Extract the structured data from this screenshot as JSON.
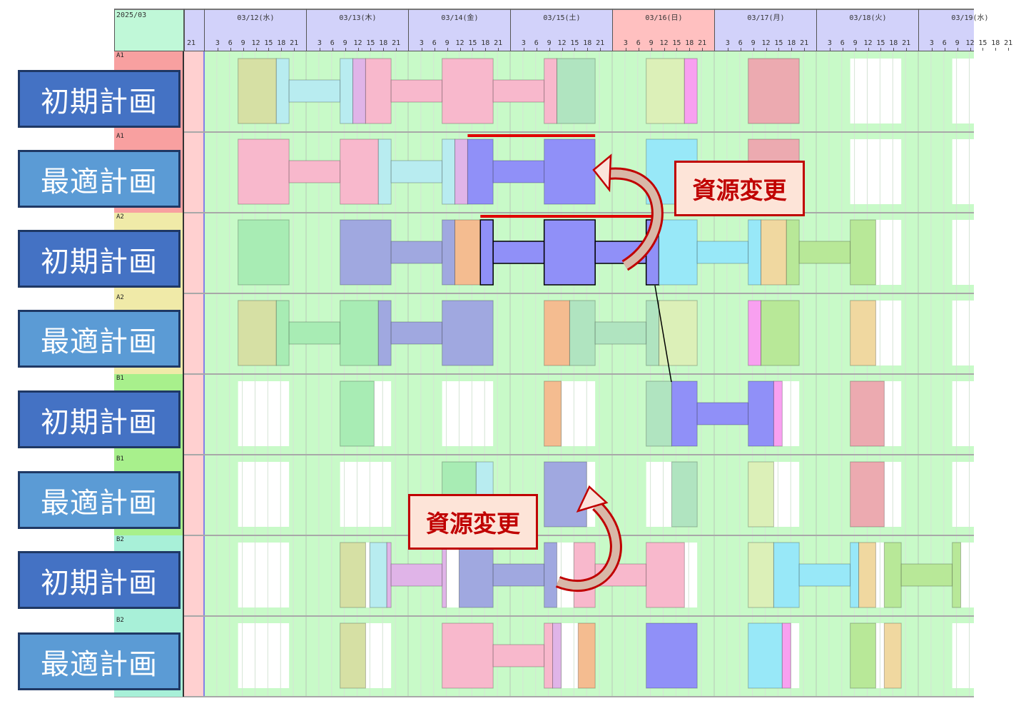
{
  "header": {
    "month": "2025/03",
    "prev_day_tick": "21",
    "days": [
      {
        "label": "03/12(水)",
        "sunday": false
      },
      {
        "label": "03/13(木)",
        "sunday": false
      },
      {
        "label": "03/14(金)",
        "sunday": false
      },
      {
        "label": "03/15(土)",
        "sunday": false
      },
      {
        "label": "03/16(日)",
        "sunday": true
      },
      {
        "label": "03/17(月)",
        "sunday": false
      },
      {
        "label": "03/18(火)",
        "sunday": false
      },
      {
        "label": "03/19(水)",
        "sunday": false
      }
    ],
    "hour_ticks": [
      "3",
      "6",
      "9",
      "12",
      "15",
      "18",
      "21"
    ]
  },
  "colors": {
    "olive": "#d6e0a4",
    "cyan": "#b8ecf0",
    "violet": "#e0b4e8",
    "pink": "#f8b8cc",
    "green2": "#b0e4c0",
    "light": "#dcf0b8",
    "magenta": "#f8a0f0",
    "rose": "#ecaab0",
    "blue": "#9090f8",
    "sky": "#98e8f8",
    "mint": "#a8ecb4",
    "bluegray": "#a0a8e0",
    "orange": "#f4bc90",
    "tan": "#f0d8a0",
    "lime": "#b8e898",
    "grid_bg": "#c8fac8",
    "free_window": "#ffffff",
    "past": "#ffd0d0",
    "res_A1": "#f8a0a0",
    "res_A2": "#f0eaa8",
    "res_B1": "#a8f08c",
    "res_B2": "#a8f0d8",
    "highlight": "#e00000",
    "callout": "#c00000"
  },
  "free_window_hours": [
    8,
    20
  ],
  "rows": [
    {
      "resource": "A1",
      "plan": "初期計画",
      "plan_type": "initial",
      "tasks": [
        [
          "03/12 08:00",
          "03/12 17:00",
          "olive",
          "block"
        ],
        [
          "03/12 17:00",
          "03/12 20:00",
          "cyan",
          "block"
        ],
        [
          "03/12 20:00",
          "03/13 08:00",
          "cyan",
          "link"
        ],
        [
          "03/13 08:00",
          "03/13 11:00",
          "cyan",
          "block"
        ],
        [
          "03/13 11:00",
          "03/13 14:00",
          "violet",
          "block"
        ],
        [
          "03/13 14:00",
          "03/13 20:00",
          "pink",
          "block"
        ],
        [
          "03/13 20:00",
          "03/14 08:00",
          "pink",
          "link"
        ],
        [
          "03/14 08:00",
          "03/14 20:00",
          "pink",
          "block"
        ],
        [
          "03/14 20:00",
          "03/15 08:00",
          "pink",
          "link"
        ],
        [
          "03/15 08:00",
          "03/15 11:00",
          "pink",
          "block"
        ],
        [
          "03/15 11:00",
          "03/15 20:00",
          "green2",
          "block"
        ],
        [
          "03/16 08:00",
          "03/16 17:00",
          "light",
          "block"
        ],
        [
          "03/16 17:00",
          "03/16 20:00",
          "magenta",
          "block"
        ],
        [
          "03/17 08:00",
          "03/17 20:00",
          "rose",
          "block"
        ]
      ]
    },
    {
      "resource": "A1",
      "plan": "最適計画",
      "plan_type": "optimal",
      "tasks": [
        [
          "03/12 08:00",
          "03/12 20:00",
          "pink",
          "block"
        ],
        [
          "03/12 20:00",
          "03/13 08:00",
          "pink",
          "link"
        ],
        [
          "03/13 08:00",
          "03/13 17:00",
          "pink",
          "block"
        ],
        [
          "03/13 17:00",
          "03/13 20:00",
          "cyan",
          "block"
        ],
        [
          "03/13 20:00",
          "03/14 08:00",
          "cyan",
          "link"
        ],
        [
          "03/14 08:00",
          "03/14 11:00",
          "cyan",
          "block"
        ],
        [
          "03/14 11:00",
          "03/14 14:00",
          "violet",
          "block"
        ],
        [
          "03/14 14:00",
          "03/14 20:00",
          "blue",
          "block"
        ],
        [
          "03/14 20:00",
          "03/15 08:00",
          "blue",
          "link"
        ],
        [
          "03/15 08:00",
          "03/15 20:00",
          "blue",
          "block"
        ],
        [
          "03/16 08:00",
          "03/16 20:00",
          "sky",
          "block"
        ],
        [
          "03/17 08:00",
          "03/17 20:00",
          "rose",
          "block"
        ]
      ]
    },
    {
      "resource": "A2",
      "plan": "初期計画",
      "plan_type": "initial",
      "tasks": [
        [
          "03/12 08:00",
          "03/12 20:00",
          "mint",
          "block"
        ],
        [
          "03/13 08:00",
          "03/13 20:00",
          "bluegray",
          "block"
        ],
        [
          "03/13 20:00",
          "03/14 08:00",
          "bluegray",
          "link"
        ],
        [
          "03/14 08:00",
          "03/14 11:00",
          "bluegray",
          "block"
        ],
        [
          "03/14 11:00",
          "03/14 17:00",
          "orange",
          "block"
        ],
        [
          "03/14 17:00",
          "03/14 20:00",
          "blue",
          "block",
          "outlined"
        ],
        [
          "03/14 20:00",
          "03/15 08:00",
          "blue",
          "link",
          "outlined"
        ],
        [
          "03/15 08:00",
          "03/15 20:00",
          "blue",
          "block",
          "outlined"
        ],
        [
          "03/15 20:00",
          "03/16 08:00",
          "blue",
          "link",
          "outlined"
        ],
        [
          "03/16 08:00",
          "03/16 11:00",
          "blue",
          "block",
          "outlined"
        ],
        [
          "03/16 11:00",
          "03/16 20:00",
          "sky",
          "block"
        ],
        [
          "03/16 20:00",
          "03/17 08:00",
          "sky",
          "link"
        ],
        [
          "03/17 08:00",
          "03/17 11:00",
          "sky",
          "block"
        ],
        [
          "03/17 11:00",
          "03/17 17:00",
          "tan",
          "block"
        ],
        [
          "03/17 17:00",
          "03/17 20:00",
          "lime",
          "block"
        ],
        [
          "03/17 20:00",
          "03/18 08:00",
          "lime",
          "link"
        ],
        [
          "03/18 08:00",
          "03/18 14:00",
          "lime",
          "block"
        ]
      ]
    },
    {
      "resource": "A2",
      "plan": "最適計画",
      "plan_type": "optimal",
      "tasks": [
        [
          "03/12 08:00",
          "03/12 17:00",
          "olive",
          "block"
        ],
        [
          "03/12 17:00",
          "03/12 20:00",
          "mint",
          "block"
        ],
        [
          "03/12 20:00",
          "03/13 08:00",
          "mint",
          "link"
        ],
        [
          "03/13 08:00",
          "03/13 17:00",
          "mint",
          "block"
        ],
        [
          "03/13 17:00",
          "03/13 20:00",
          "bluegray",
          "block"
        ],
        [
          "03/13 20:00",
          "03/14 08:00",
          "bluegray",
          "link"
        ],
        [
          "03/14 08:00",
          "03/14 20:00",
          "bluegray",
          "block"
        ],
        [
          "03/15 08:00",
          "03/15 14:00",
          "orange",
          "block"
        ],
        [
          "03/15 14:00",
          "03/15 20:00",
          "green2",
          "block"
        ],
        [
          "03/15 20:00",
          "03/16 08:00",
          "green2",
          "link"
        ],
        [
          "03/16 08:00",
          "03/16 11:00",
          "green2",
          "block"
        ],
        [
          "03/16 11:00",
          "03/16 20:00",
          "light",
          "block"
        ],
        [
          "03/17 08:00",
          "03/17 11:00",
          "magenta",
          "block"
        ],
        [
          "03/17 11:00",
          "03/17 20:00",
          "lime",
          "block"
        ],
        [
          "03/18 08:00",
          "03/18 14:00",
          "tan",
          "block"
        ]
      ]
    },
    {
      "resource": "B1",
      "plan": "初期計画",
      "plan_type": "initial",
      "tasks": [
        [
          "03/13 08:00",
          "03/13 16:00",
          "mint",
          "block"
        ],
        [
          "03/15 08:00",
          "03/15 12:00",
          "orange",
          "block"
        ],
        [
          "03/16 08:00",
          "03/16 14:00",
          "green2",
          "block"
        ],
        [
          "03/16 14:00",
          "03/16 20:00",
          "blue",
          "block"
        ],
        [
          "03/16 20:00",
          "03/17 08:00",
          "blue",
          "link"
        ],
        [
          "03/17 08:00",
          "03/17 14:00",
          "blue",
          "block"
        ],
        [
          "03/17 14:00",
          "03/17 16:00",
          "magenta",
          "block"
        ],
        [
          "03/18 08:00",
          "03/18 16:00",
          "rose",
          "block"
        ]
      ]
    },
    {
      "resource": "B1",
      "plan": "最適計画",
      "plan_type": "optimal",
      "tasks": [
        [
          "03/14 08:00",
          "03/14 16:00",
          "mint",
          "block"
        ],
        [
          "03/14 16:00",
          "03/14 20:00",
          "cyan",
          "block"
        ],
        [
          "03/15 08:00",
          "03/15 18:00",
          "bluegray",
          "block"
        ],
        [
          "03/16 14:00",
          "03/16 20:00",
          "green2",
          "block"
        ],
        [
          "03/17 08:00",
          "03/17 14:00",
          "light",
          "block"
        ],
        [
          "03/18 08:00",
          "03/18 16:00",
          "rose",
          "block"
        ]
      ]
    },
    {
      "resource": "B2",
      "plan": "初期計画",
      "plan_type": "initial",
      "tasks": [
        [
          "03/13 08:00",
          "03/13 14:00",
          "olive",
          "block"
        ],
        [
          "03/13 15:00",
          "03/13 19:00",
          "cyan",
          "block"
        ],
        [
          "03/13 19:00",
          "03/13 20:00",
          "violet",
          "block"
        ],
        [
          "03/13 20:00",
          "03/14 08:00",
          "violet",
          "link"
        ],
        [
          "03/14 08:00",
          "03/14 09:00",
          "violet",
          "block"
        ],
        [
          "03/14 12:00",
          "03/14 20:00",
          "bluegray",
          "block"
        ],
        [
          "03/14 20:00",
          "03/15 08:00",
          "bluegray",
          "link"
        ],
        [
          "03/15 08:00",
          "03/15 11:00",
          "bluegray",
          "block"
        ],
        [
          "03/15 15:00",
          "03/15 20:00",
          "pink",
          "block"
        ],
        [
          "03/15 20:00",
          "03/16 08:00",
          "pink",
          "link"
        ],
        [
          "03/16 08:00",
          "03/16 17:00",
          "pink",
          "block"
        ],
        [
          "03/17 08:00",
          "03/17 14:00",
          "light",
          "block"
        ],
        [
          "03/17 14:00",
          "03/17 20:00",
          "sky",
          "block"
        ],
        [
          "03/17 20:00",
          "03/18 08:00",
          "sky",
          "link"
        ],
        [
          "03/18 08:00",
          "03/18 10:00",
          "sky",
          "block"
        ],
        [
          "03/18 10:00",
          "03/18 14:00",
          "tan",
          "block"
        ],
        [
          "03/18 16:00",
          "03/18 20:00",
          "lime",
          "block"
        ],
        [
          "03/18 20:00",
          "03/19 08:00",
          "lime",
          "link"
        ],
        [
          "03/19 08:00",
          "03/19 10:00",
          "lime",
          "block"
        ]
      ]
    },
    {
      "resource": "B2",
      "plan": "最適計画",
      "plan_type": "optimal",
      "tasks": [
        [
          "03/13 08:00",
          "03/13 14:00",
          "olive",
          "block"
        ],
        [
          "03/14 08:00",
          "03/14 20:00",
          "pink",
          "block"
        ],
        [
          "03/14 20:00",
          "03/15 08:00",
          "pink",
          "link"
        ],
        [
          "03/15 08:00",
          "03/15 10:00",
          "pink",
          "block"
        ],
        [
          "03/15 10:00",
          "03/15 12:00",
          "violet",
          "block"
        ],
        [
          "03/15 16:00",
          "03/15 20:00",
          "orange",
          "block"
        ],
        [
          "03/16 08:00",
          "03/16 20:00",
          "blue",
          "block"
        ],
        [
          "03/17 08:00",
          "03/17 16:00",
          "sky",
          "block"
        ],
        [
          "03/17 16:00",
          "03/17 18:00",
          "magenta",
          "block"
        ],
        [
          "03/18 08:00",
          "03/18 14:00",
          "lime",
          "block"
        ],
        [
          "03/18 16:00",
          "03/18 20:00",
          "tan",
          "block"
        ]
      ]
    }
  ],
  "highlights": [
    {
      "row": 1,
      "start": "03/14 14:00",
      "end": "03/15 20:00"
    },
    {
      "row": 2,
      "start": "03/14 17:00",
      "end": "03/16 11:00"
    }
  ],
  "annotations": [
    {
      "label": "資源変更"
    },
    {
      "label": "資源変更"
    }
  ]
}
